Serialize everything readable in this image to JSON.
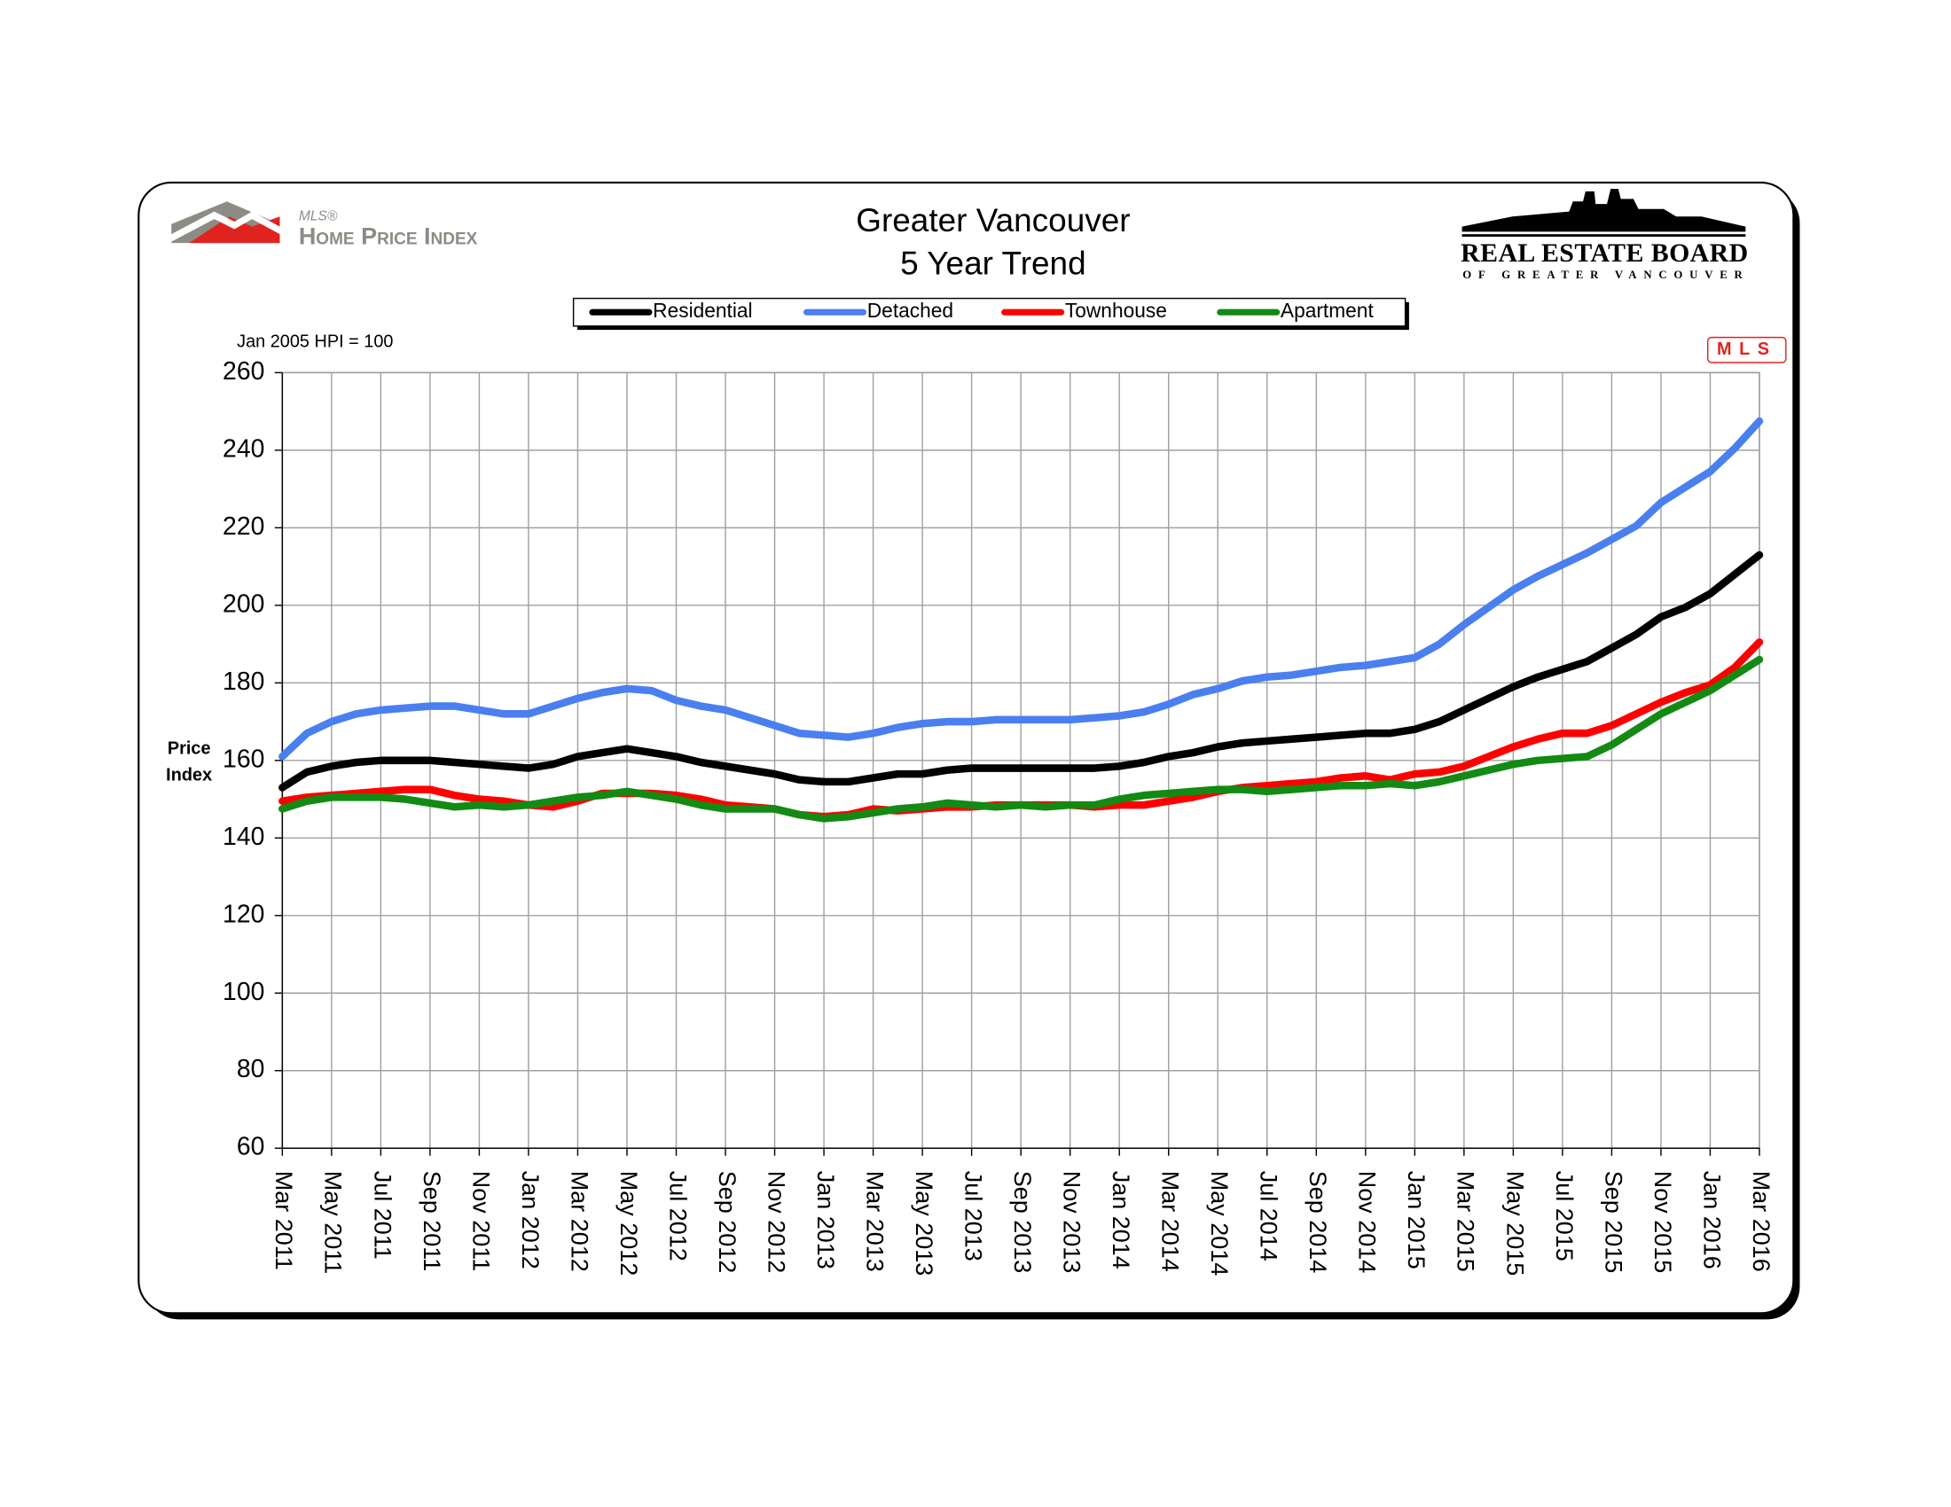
{
  "logos": {
    "mls_small": "MLS®",
    "hpi": "Home Price Index",
    "board": "REAL ESTATE BOARD",
    "board_sub": "OF GREATER VANCOUVER",
    "badge": "MLS"
  },
  "chart_data": {
    "type": "line",
    "title": "Greater Vancouver",
    "subtitle": "5 Year Trend",
    "note": "Jan 2005 HPI = 100",
    "y_label": "Price Index",
    "categories": [
      "Mar 2011",
      null,
      "May 2011",
      null,
      "Jul 2011",
      null,
      "Sep 2011",
      null,
      "Nov 2011",
      null,
      "Jan 2012",
      null,
      "Mar 2012",
      null,
      "May 2012",
      null,
      "Jul 2012",
      null,
      "Sep 2012",
      null,
      "Nov 2012",
      null,
      "Jan 2013",
      null,
      "Mar 2013",
      null,
      "May 2013",
      null,
      "Jul 2013",
      null,
      "Sep 2013",
      null,
      "Nov 2013",
      null,
      "Jan 2014",
      null,
      "Mar 2014",
      null,
      "May 2014",
      null,
      "Jul 2014",
      null,
      "Sep 2014",
      null,
      "Nov 2014",
      null,
      "Jan 2015",
      null,
      "Mar 2015",
      null,
      "May 2015",
      null,
      "Jul 2015",
      null,
      "Sep 2015",
      null,
      "Nov 2015",
      null,
      "Jan 2016",
      null,
      "Mar 2016"
    ],
    "series": [
      {
        "name": "Residential",
        "color": "#000000",
        "values": [
          153,
          157,
          158.5,
          159.5,
          160,
          160,
          160,
          159.5,
          159,
          158.5,
          158,
          159,
          161,
          162,
          163,
          162,
          161,
          159.5,
          158.5,
          157.5,
          156.5,
          155,
          154.5,
          154.5,
          155.5,
          156.5,
          156.5,
          157.5,
          158,
          158,
          158,
          158,
          158,
          158,
          158.5,
          159.5,
          161,
          162,
          163.5,
          164.5,
          165,
          165.5,
          166,
          166.5,
          167,
          167,
          168,
          170,
          173,
          176,
          179,
          181.5,
          183.5,
          185.5,
          189,
          192.5,
          197,
          199.5,
          203,
          208,
          213
        ]
      },
      {
        "name": "Detached",
        "color": "#4a7fef",
        "values": [
          161,
          167,
          170,
          172,
          173,
          173.5,
          174,
          174,
          173,
          172,
          172,
          174,
          176,
          177.5,
          178.5,
          178,
          175.5,
          174,
          173,
          171,
          169,
          167,
          166.5,
          166,
          167,
          168.5,
          169.5,
          170,
          170,
          170.5,
          170.5,
          170.5,
          170.5,
          171,
          171.5,
          172.5,
          174.5,
          177,
          178.5,
          180.5,
          181.5,
          182,
          183,
          184,
          184.5,
          185.5,
          186.5,
          190,
          195,
          199.5,
          204,
          207.5,
          210.5,
          213.5,
          217,
          220.5,
          226.5,
          230.5,
          234.5,
          240.5,
          247.5
        ]
      },
      {
        "name": "Townhouse",
        "color": "#ff0000",
        "values": [
          149.5,
          150.5,
          151,
          151.5,
          152,
          152.5,
          152.5,
          151,
          150,
          149.5,
          148.5,
          148,
          149.5,
          151.5,
          151.5,
          151.5,
          151,
          150,
          148.5,
          148,
          147.5,
          146,
          145.5,
          146,
          147.5,
          147,
          147.5,
          148,
          148,
          148.5,
          148.5,
          148.5,
          148.5,
          148,
          148.5,
          148.5,
          149.5,
          150.5,
          152,
          153,
          153.5,
          154,
          154.5,
          155.5,
          156,
          155,
          156.5,
          157,
          158.5,
          161,
          163.5,
          165.5,
          167,
          167,
          169,
          172,
          175,
          177.5,
          179.5,
          184,
          190.5
        ]
      },
      {
        "name": "Apartment",
        "color": "#138a13",
        "values": [
          147.5,
          149.5,
          150.5,
          150.5,
          150.5,
          150,
          149,
          148,
          148.5,
          148,
          148.5,
          149.5,
          150.5,
          151,
          152,
          151,
          150,
          148.5,
          147.5,
          147.5,
          147.5,
          146,
          145,
          145.5,
          146.5,
          147.5,
          148,
          149,
          148.5,
          148,
          148.5,
          148,
          148.5,
          148.5,
          150,
          151,
          151.5,
          152,
          152.5,
          152.5,
          152,
          152.5,
          153,
          153.5,
          153.5,
          154,
          153.5,
          154.5,
          156,
          157.5,
          159,
          160,
          160.5,
          161,
          164,
          168,
          172,
          175,
          178,
          182,
          186
        ]
      }
    ],
    "ylim": [
      60,
      260
    ],
    "yticks": [
      60,
      80,
      100,
      120,
      140,
      160,
      180,
      200,
      220,
      240,
      260
    ],
    "grid": true,
    "legend": "top"
  }
}
